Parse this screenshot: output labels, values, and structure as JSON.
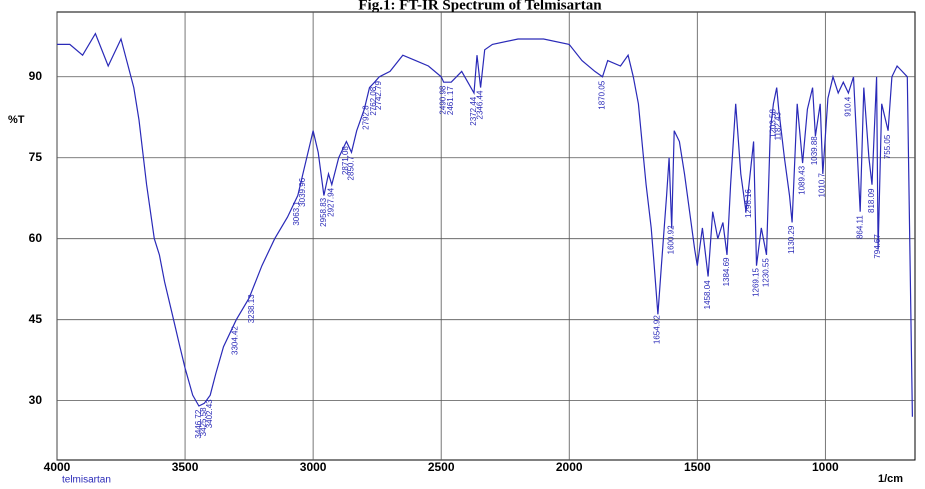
{
  "chart_data": {
    "type": "line",
    "title": "Fig.1: FT-IR Spectrum of Telmisartan",
    "ylabel": "%T",
    "xlabel": "1/cm",
    "sample": "telmisartan",
    "xlim": [
      4000,
      650
    ],
    "ylim": [
      19,
      102
    ],
    "xticks": [
      4000,
      3500,
      3000,
      2500,
      2000,
      1500,
      1000
    ],
    "yticks": [
      30,
      45,
      60,
      75,
      90
    ],
    "grid": true,
    "series": [
      {
        "name": "telmisartan",
        "color": "#2a2ab8",
        "x": [
          4000,
          3950,
          3900,
          3850,
          3800,
          3750,
          3700,
          3680,
          3650,
          3620,
          3600,
          3580,
          3550,
          3520,
          3500,
          3470,
          3446,
          3425,
          3402,
          3380,
          3350,
          3300,
          3250,
          3200,
          3150,
          3100,
          3060,
          3040,
          3010,
          3000,
          2980,
          2958,
          2940,
          2927,
          2900,
          2870,
          2850,
          2830,
          2800,
          2780,
          2760,
          2742,
          2700,
          2650,
          2600,
          2550,
          2500,
          2490,
          2461,
          2420,
          2372,
          2360,
          2346,
          2330,
          2300,
          2200,
          2100,
          2000,
          1950,
          1900,
          1870,
          1850,
          1800,
          1770,
          1750,
          1730,
          1710,
          1700,
          1680,
          1670,
          1654,
          1640,
          1620,
          1610,
          1600,
          1590,
          1570,
          1550,
          1530,
          1510,
          1500,
          1480,
          1458,
          1440,
          1420,
          1400,
          1384,
          1370,
          1350,
          1330,
          1310,
          1298,
          1280,
          1269,
          1250,
          1230,
          1215,
          1203,
          1190,
          1182,
          1160,
          1140,
          1130,
          1110,
          1089,
          1070,
          1050,
          1039,
          1020,
          1010,
          990,
          970,
          950,
          930,
          910,
          890,
          864,
          850,
          830,
          818,
          800,
          794,
          780,
          755,
          740,
          720,
          700,
          680,
          660
        ],
        "values": [
          96,
          96,
          94,
          98,
          92,
          97,
          88,
          82,
          70,
          60,
          57,
          52,
          46,
          40,
          36,
          31,
          29,
          29.5,
          31,
          35,
          40,
          45,
          49,
          55,
          60,
          64,
          68,
          72,
          78,
          80,
          76,
          68,
          72,
          70,
          75,
          78,
          76,
          80,
          84,
          88,
          89,
          90,
          91,
          94,
          93,
          92,
          90,
          89,
          89,
          91,
          87,
          94,
          88,
          95,
          96,
          97,
          97,
          96,
          93,
          91,
          90,
          93,
          92,
          94,
          90,
          85,
          75,
          70,
          62,
          56,
          46,
          55,
          68,
          75,
          62,
          80,
          78,
          72,
          65,
          58,
          55,
          62,
          53,
          65,
          60,
          63,
          57,
          70,
          85,
          72,
          65,
          70,
          78,
          55,
          62,
          57,
          80,
          85,
          88,
          84,
          75,
          68,
          63,
          85,
          74,
          84,
          88,
          79,
          85,
          72,
          86,
          90,
          87,
          89,
          87,
          90,
          65,
          88,
          75,
          70,
          90,
          58,
          85,
          80,
          90,
          92,
          91,
          90,
          27
        ]
      }
    ],
    "peaks": [
      3446.72,
      3425.58,
      3402.43,
      3304.42,
      3238.13,
      3063.1,
      3039.96,
      2958.83,
      2927.94,
      2871.08,
      2850.7,
      2792.8,
      2762.08,
      2742.79,
      2490.98,
      2461.17,
      2372.44,
      2346.44,
      1870.05,
      1654.92,
      1600.92,
      1458.04,
      1384.69,
      1298.16,
      1269.15,
      1230.55,
      1203.58,
      1182.43,
      1130.29,
      1089.43,
      1039.88,
      1010.7,
      910.4,
      864.11,
      818.09,
      794.67,
      755.05
    ]
  }
}
